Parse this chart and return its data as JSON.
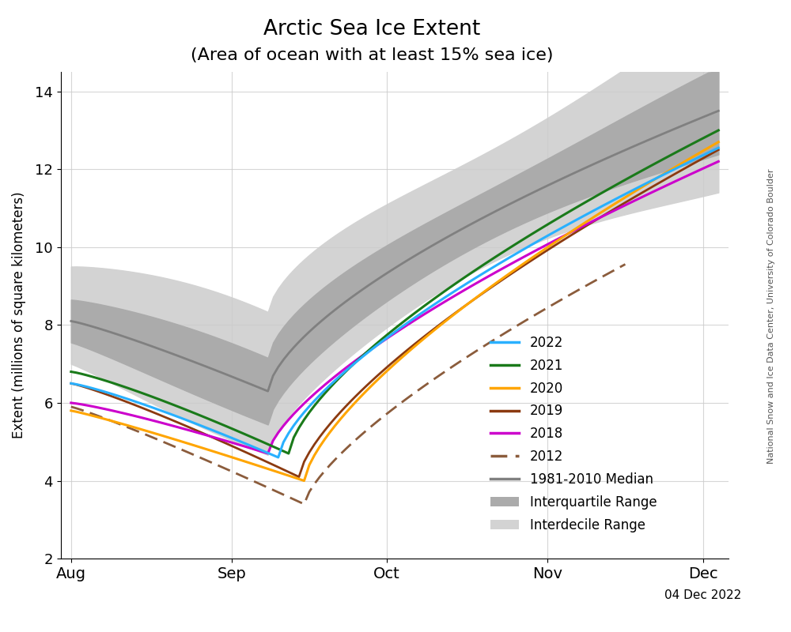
{
  "title_line1": "Arctic Sea Ice Extent",
  "title_line2": "(Area of ocean with at least 15% sea ice)",
  "ylabel": "Extent (millions of square kilometers)",
  "date_label": "04 Dec 2022",
  "watermark": "National Snow and Ice Data Center, University of Colorado Boulder",
  "ylim": [
    2,
    14.5
  ],
  "yticks": [
    2,
    4,
    6,
    8,
    10,
    12,
    14
  ],
  "colors": {
    "2022": "#29B0FF",
    "2021": "#1a7a1a",
    "2020": "#FFA500",
    "2019": "#8B3A10",
    "2018": "#CC00CC",
    "2012": "#8B5C3C",
    "median": "#808080",
    "iqr": "#ABABAB",
    "idr": "#D3D3D3"
  }
}
